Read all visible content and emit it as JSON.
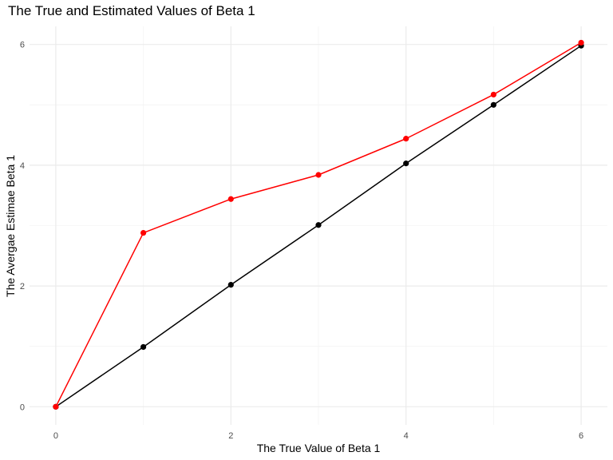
{
  "chart_data": {
    "type": "line",
    "title": "The True and Estimated Values of Beta 1",
    "xlabel": "The True Value of Beta 1",
    "ylabel": "The Avergae Estimae Beta 1",
    "xlim": [
      -0.3,
      6.3
    ],
    "ylim": [
      -0.3,
      6.3
    ],
    "x_ticks": [
      "0",
      "2",
      "4",
      "6"
    ],
    "y_ticks": [
      "0",
      "2",
      "4",
      "6"
    ],
    "grid": true,
    "legend": "none",
    "x": [
      0,
      1,
      2,
      3,
      4,
      5,
      6
    ],
    "series": [
      {
        "color": "#000000",
        "values": [
          0.0,
          0.99,
          2.02,
          3.01,
          4.03,
          5.0,
          5.98
        ]
      },
      {
        "color": "#ff0000",
        "values": [
          0.0,
          2.88,
          3.44,
          3.84,
          4.44,
          5.17,
          6.03
        ]
      }
    ]
  }
}
